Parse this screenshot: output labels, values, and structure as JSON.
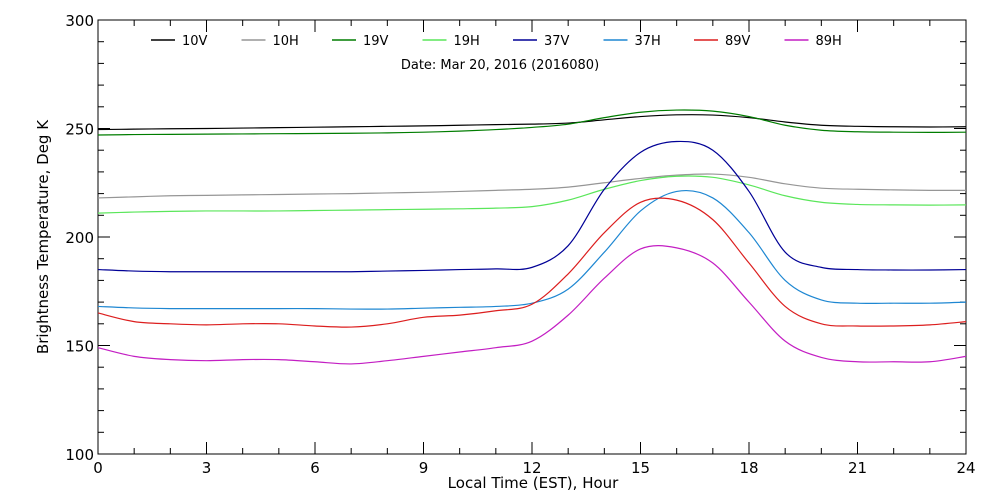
{
  "chart_data": {
    "type": "line",
    "title": "",
    "annotation": "Date: Mar 20, 2016 (2016080)",
    "xlabel": "Local Time (EST), Hour",
    "ylabel": "Brightness Temperature, Deg K",
    "xlim": [
      0,
      24
    ],
    "ylim": [
      100,
      300
    ],
    "xticks": [
      0,
      3,
      6,
      9,
      12,
      15,
      18,
      21,
      24
    ],
    "yticks": [
      100,
      150,
      200,
      250,
      300
    ],
    "grid": false,
    "legend": "top",
    "x": [
      0,
      1,
      2,
      3,
      4,
      5,
      6,
      7,
      8,
      9,
      10,
      11,
      12,
      13,
      14,
      15,
      16,
      17,
      18,
      19,
      20,
      21,
      22,
      23,
      24
    ],
    "series": [
      {
        "name": "10V",
        "color": "#000000",
        "values": [
          249.5,
          249.7,
          249.9,
          250,
          250.2,
          250.4,
          250.6,
          250.8,
          251,
          251.2,
          251.5,
          251.8,
          252,
          252.5,
          254,
          255.5,
          256.3,
          256.2,
          255,
          253,
          251.5,
          251,
          250.8,
          250.7,
          250.8
        ]
      },
      {
        "name": "10H",
        "color": "#969696",
        "values": [
          218,
          218.5,
          219,
          219.2,
          219.4,
          219.6,
          219.8,
          220,
          220.3,
          220.6,
          221,
          221.5,
          222,
          223,
          225,
          227,
          228.5,
          229,
          227.5,
          224.5,
          222.5,
          222,
          221.7,
          221.5,
          221.5
        ]
      },
      {
        "name": "19V",
        "color": "#007d00",
        "values": [
          247,
          247.2,
          247.3,
          247.4,
          247.5,
          247.6,
          247.7,
          247.8,
          248,
          248.3,
          248.8,
          249.5,
          250.5,
          252,
          255,
          257.5,
          258.5,
          258,
          255.5,
          251.5,
          249.2,
          248.5,
          248.3,
          248.2,
          248.3
        ]
      },
      {
        "name": "19H",
        "color": "#5ae65a",
        "values": [
          211,
          211.5,
          211.8,
          212,
          212,
          212,
          212.2,
          212.4,
          212.6,
          212.8,
          213,
          213.3,
          214,
          217,
          222,
          226,
          228,
          227.5,
          224,
          219,
          216,
          215,
          214.8,
          214.7,
          214.8
        ]
      },
      {
        "name": "37V",
        "color": "#000096",
        "values": [
          185,
          184.3,
          184,
          184,
          184,
          184,
          184,
          184,
          184.3,
          184.6,
          185,
          185.3,
          186,
          196,
          222,
          239,
          244,
          240,
          221,
          193,
          186,
          185,
          184.8,
          184.8,
          185
        ]
      },
      {
        "name": "37H",
        "color": "#1e87d2",
        "values": [
          168,
          167.3,
          167,
          167,
          167,
          167,
          167,
          166.8,
          166.8,
          167.2,
          167.6,
          168,
          169.5,
          176,
          193,
          212,
          221,
          218,
          202,
          180,
          171,
          169.5,
          169.5,
          169.5,
          170
        ]
      },
      {
        "name": "89V",
        "color": "#dc1e1e",
        "values": [
          165,
          161,
          160,
          159.5,
          160,
          160,
          159,
          158.5,
          160,
          163,
          164,
          166,
          169,
          183,
          202,
          216,
          217,
          208,
          188,
          168,
          160,
          159,
          159,
          159.5,
          161
        ]
      },
      {
        "name": "89H",
        "color": "#c31ec3",
        "values": [
          149,
          145,
          143.5,
          143,
          143.5,
          143.5,
          142.5,
          141.5,
          143,
          145,
          147,
          149,
          152,
          164,
          181,
          194.5,
          195,
          188,
          170,
          152,
          144.5,
          142.5,
          142.5,
          142.5,
          145
        ]
      }
    ]
  }
}
